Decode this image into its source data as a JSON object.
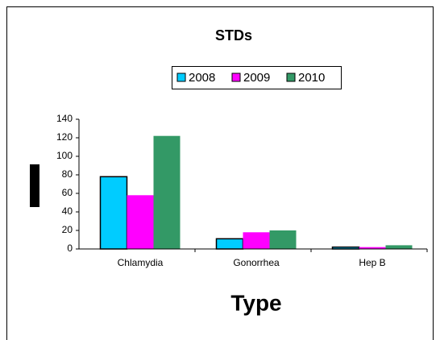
{
  "chart_data": {
    "type": "bar",
    "title": "STDs",
    "x_label": "Type",
    "categories": [
      "Chlamydia",
      "Gonorrhea",
      "Hep B"
    ],
    "series": [
      {
        "name": "2008",
        "color": "#00ccff",
        "values": [
          78,
          11,
          2
        ]
      },
      {
        "name": "2009",
        "color": "#ff00ff",
        "values": [
          58,
          18,
          2
        ]
      },
      {
        "name": "2010",
        "color": "#339966",
        "values": [
          122,
          20,
          4
        ]
      }
    ],
    "ylim": [
      0,
      140
    ],
    "yticks": [
      0,
      20,
      40,
      60,
      80,
      100,
      120,
      140
    ],
    "legend": "top"
  }
}
